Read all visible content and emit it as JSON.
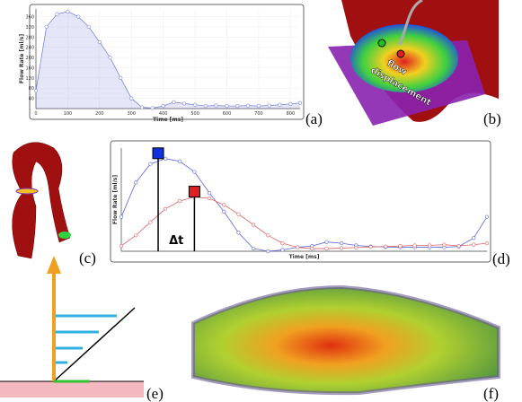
{
  "chart_data": [
    {
      "type": "line",
      "x_label": "Time [ms]",
      "y_label": "Flow Rate [ml/s]",
      "x": [
        0,
        33,
        66,
        100,
        133,
        166,
        200,
        233,
        266,
        300,
        333,
        366,
        400,
        433,
        466,
        500,
        533,
        566,
        600,
        633,
        666,
        700,
        733,
        766,
        800,
        830
      ],
      "series": [
        {
          "color": "#7b86e0",
          "values": [
            70,
            320,
            370,
            380,
            360,
            320,
            260,
            200,
            120,
            40,
            5,
            2,
            10,
            25,
            20,
            15,
            10,
            12,
            10,
            10,
            12,
            10,
            12,
            15,
            18,
            22
          ]
        }
      ],
      "area": true,
      "xlim": [
        0,
        830
      ],
      "ylim": [
        0,
        390
      ],
      "xticks": [
        0,
        100,
        200,
        300,
        400,
        500,
        600,
        700,
        800
      ],
      "yticks": [
        40,
        80,
        120,
        160,
        200,
        240,
        280,
        320,
        360
      ],
      "grid": true
    },
    {
      "type": "line",
      "x_label": "Time [ms]",
      "y_label": "Flow Rate [ml/s]",
      "annotation": "Δt",
      "x": [
        0,
        33,
        66,
        100,
        133,
        166,
        200,
        233,
        266,
        300,
        333,
        366,
        400,
        433,
        466,
        500,
        533,
        566,
        600,
        633,
        666,
        700,
        733,
        766,
        800,
        830
      ],
      "series": [
        {
          "color": "#5a66e0",
          "values": [
            130,
            260,
            330,
            350,
            340,
            300,
            220,
            150,
            70,
            10,
            0,
            5,
            15,
            20,
            35,
            30,
            22,
            18,
            16,
            15,
            15,
            15,
            15,
            18,
            50,
            130
          ]
        },
        {
          "color": "#e06060",
          "values": [
            20,
            60,
            110,
            160,
            190,
            205,
            200,
            175,
            140,
            100,
            60,
            30,
            15,
            10,
            10,
            12,
            14,
            16,
            18,
            20,
            22,
            22,
            25,
            20,
            25,
            30
          ]
        }
      ],
      "area": false,
      "xlim": [
        0,
        830
      ],
      "ylim": [
        0,
        390
      ]
    }
  ],
  "panel_b": {
    "line1": "flow",
    "line2": "displacement"
  },
  "panel_labels": [
    "(a)",
    "(b)",
    "(c)",
    "(d)",
    "(e)",
    "(f)"
  ]
}
